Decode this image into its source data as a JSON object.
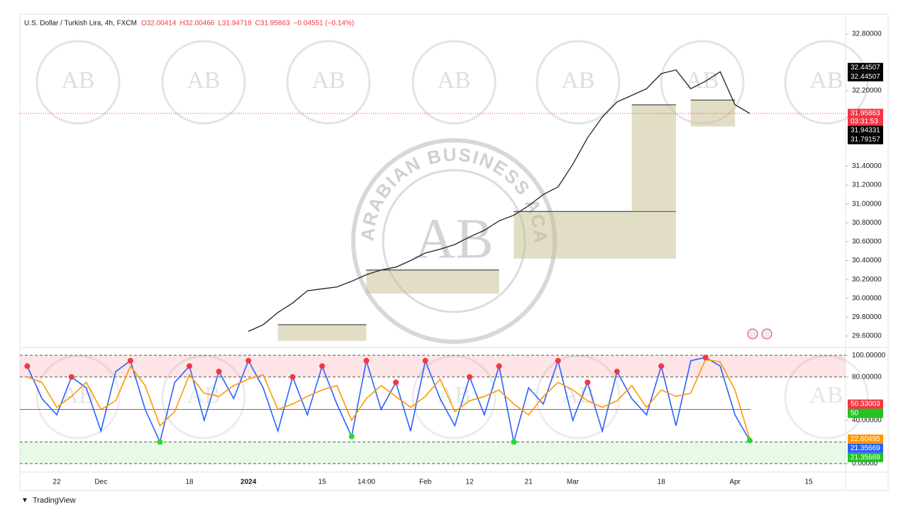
{
  "header": {
    "symbol": "U.S. Dollar / Turkish Lira, 4h, FXCM",
    "ohlc": [
      "O32.00414",
      "H32.00466",
      "L31.94718",
      "C31.95863",
      "−0.04551 (−0.14%)"
    ]
  },
  "watermark": {
    "logo": "AB",
    "text": "ARABIAN BUSINESS ACADEMY"
  },
  "footer": "TradingView",
  "chart_data": [
    {
      "type": "line",
      "categories": [
        null,
        null,
        "22",
        null,
        null,
        "Dec",
        null,
        null,
        null,
        null,
        null,
        "18",
        null,
        null,
        null,
        "2024",
        null,
        null,
        null,
        null,
        "15",
        null,
        null,
        "14:00",
        null,
        null,
        null,
        "Feb",
        null,
        null,
        "12",
        null,
        null,
        null,
        "21",
        null,
        null,
        "Mar",
        null,
        null,
        null,
        null,
        null,
        "18",
        null,
        null,
        null,
        null,
        "Apr",
        null,
        null,
        null,
        null,
        "15",
        null,
        null
      ],
      "series": [
        {
          "color": "#222222",
          "values": [
            null,
            null,
            null,
            null,
            null,
            null,
            null,
            null,
            null,
            null,
            null,
            null,
            null,
            null,
            null,
            29.65,
            29.72,
            29.85,
            29.95,
            30.08,
            30.1,
            30.12,
            30.18,
            30.25,
            30.3,
            30.33,
            30.4,
            30.48,
            30.52,
            30.57,
            30.65,
            30.72,
            30.82,
            30.88,
            30.98,
            31.1,
            31.18,
            31.42,
            31.7,
            31.92,
            32.08,
            32.15,
            32.22,
            32.38,
            32.42,
            32.22,
            32.3,
            32.4,
            32.05,
            31.95863,
            null,
            null,
            null,
            null,
            null,
            null
          ]
        }
      ],
      "ylim": [
        29.54,
        33.01
      ],
      "yticks": [
        {
          "value": 29.6,
          "label": "29.60000"
        },
        {
          "value": 29.8,
          "label": "29.80000"
        },
        {
          "value": 30.0,
          "label": "30.00000"
        },
        {
          "value": 30.2,
          "label": "30.20000"
        },
        {
          "value": 30.4,
          "label": "30.40000"
        },
        {
          "value": 30.6,
          "label": "30.60000"
        },
        {
          "value": 30.8,
          "label": "30.80000"
        },
        {
          "value": 31.0,
          "label": "31.00000"
        },
        {
          "value": 31.2,
          "label": "31.20000"
        },
        {
          "value": 31.4,
          "label": "31.40000"
        },
        {
          "value": 32.2,
          "label": "32.20000"
        },
        {
          "value": 32.8,
          "label": "32.80000"
        }
      ],
      "zones": [
        {
          "start": 17,
          "end": 23,
          "low": 29.55,
          "high": 29.72
        },
        {
          "start": 23,
          "end": 32,
          "low": 30.05,
          "high": 30.3
        },
        {
          "start": 33,
          "end": 44,
          "low": 30.42,
          "high": 30.92
        },
        {
          "start": 41,
          "end": 44,
          "low": 30.92,
          "high": 32.05
        },
        {
          "start": 45,
          "end": 48,
          "low": 31.82,
          "high": 32.1
        }
      ],
      "price_labels": [
        {
          "value": 32.44507,
          "color": "#000000"
        },
        {
          "value": 32.44507,
          "color": "#000000"
        },
        {
          "value": 31.95863,
          "color": "#f23645",
          "countdown": "03:31:53"
        },
        {
          "value": 31.94331,
          "color": "#000000"
        },
        {
          "value": 31.79157,
          "color": "#000000"
        }
      ],
      "current_price": 31.95863
    },
    {
      "type": "oscillator",
      "series": [
        {
          "color": "#2962ff",
          "values": [
            90,
            60,
            45,
            80,
            70,
            30,
            85,
            95,
            50,
            20,
            75,
            90,
            40,
            85,
            60,
            95,
            70,
            30,
            80,
            45,
            90,
            55,
            25,
            95,
            50,
            75,
            30,
            95,
            60,
            35,
            80,
            45,
            90,
            20,
            70,
            55,
            95,
            40,
            75,
            30,
            85,
            60,
            45,
            90,
            35,
            95,
            98,
            90,
            45,
            21.35669,
            null,
            null,
            null,
            null,
            null,
            null
          ]
        },
        {
          "color": "#ff9800",
          "values": [
            80,
            75,
            52,
            62,
            75,
            50,
            58,
            90,
            72,
            35,
            48,
            82,
            65,
            62,
            72,
            78,
            82,
            50,
            55,
            62,
            68,
            72,
            40,
            60,
            72,
            62,
            52,
            62,
            78,
            48,
            58,
            62,
            68,
            55,
            45,
            62,
            75,
            68,
            58,
            52,
            58,
            72,
            52,
            68,
            62,
            65,
            96,
            94,
            68,
            22.60495,
            null,
            null,
            null,
            null,
            null,
            null
          ]
        }
      ],
      "ylim": [
        -4,
        106
      ],
      "yticks": [
        {
          "value": 100,
          "label": "100.00000"
        },
        {
          "value": 80,
          "label": "80.00000"
        },
        {
          "value": 40,
          "label": "40.00000"
        },
        {
          "value": 0,
          "label": "0.00000"
        }
      ],
      "upper_band": [
        80,
        100
      ],
      "lower_band": [
        0,
        20
      ],
      "midline": 50,
      "level_labels": [
        {
          "value": 50.33003,
          "color": "#f23645"
        },
        {
          "value": 50,
          "color": "#22c322"
        },
        {
          "value": 22.60495,
          "color": "#ff9800"
        },
        {
          "value": 21.35669,
          "color": "#2962ff"
        },
        {
          "value": 21.35669,
          "color": "#22c322"
        }
      ]
    }
  ]
}
